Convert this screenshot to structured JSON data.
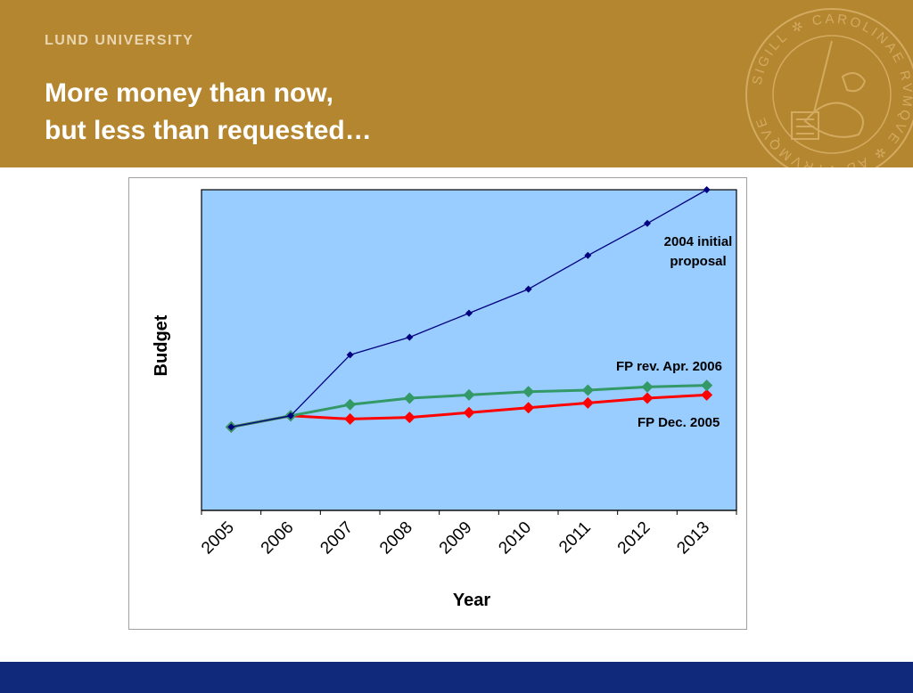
{
  "header": {
    "university": "LUND UNIVERSITY",
    "title_line1": "More money than now,",
    "title_line2": "but less than requested…",
    "seal_text": "SIGILL ✲ CAROLINAE RVMQVE ✲ AD VTRVMQVE"
  },
  "colors": {
    "header_bg": "#b58630",
    "footer_bg": "#10297a",
    "plot_bg": "#99ccff"
  },
  "chart_data": {
    "type": "line",
    "title": "",
    "xlabel": "Year",
    "ylabel": "Budget",
    "categories": [
      "2005",
      "2006",
      "2007",
      "2008",
      "2009",
      "2010",
      "2011",
      "2012",
      "2013"
    ],
    "ylim": [
      0,
      100
    ],
    "grid": false,
    "series": [
      {
        "name": "2004 initial proposal",
        "color": "#000080",
        "marker": "diamond-small",
        "values": [
          26,
          29.5,
          48.5,
          54,
          61.5,
          69,
          79.5,
          89.5,
          100
        ]
      },
      {
        "name": "FP rev. Apr. 2006",
        "color": "#339966",
        "marker": "diamond",
        "values": [
          26,
          29.5,
          33,
          35,
          36,
          37,
          37.5,
          38.5,
          39
        ]
      },
      {
        "name": "FP Dec. 2005",
        "color": "#ff0000",
        "marker": "diamond",
        "values": [
          26,
          29.5,
          28.5,
          29,
          30.5,
          32,
          33.5,
          35,
          36
        ]
      }
    ],
    "annotations": [
      {
        "text_lines": [
          "2004 initial",
          "proposal"
        ],
        "series": 0
      },
      {
        "text_lines": [
          "FP rev. Apr. 2006"
        ],
        "series": 1
      },
      {
        "text_lines": [
          "FP Dec. 2005"
        ],
        "series": 2
      }
    ]
  }
}
